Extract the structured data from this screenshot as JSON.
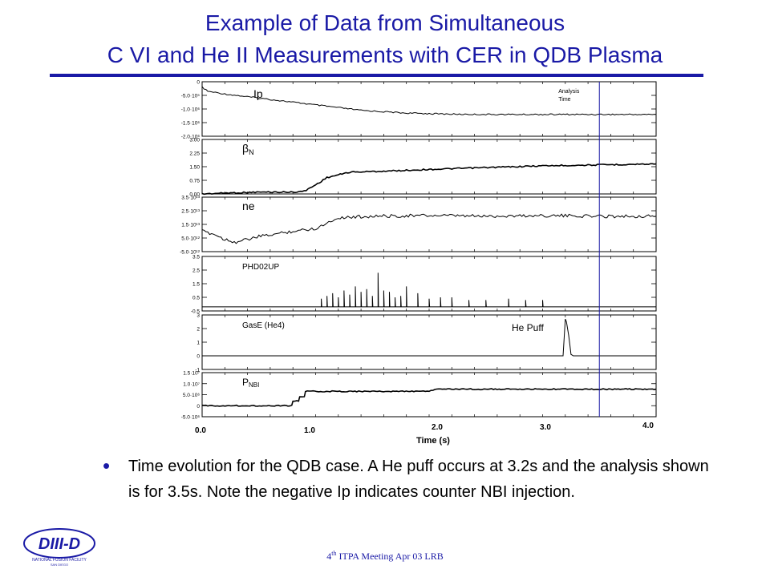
{
  "slide": {
    "title_line1": "Example of Data from Simultaneous",
    "title_line2": "C VI and He  II Measurements with CER in QDB Plasma",
    "bullet": "Time evolution for the QDB case. A He puff occurs at 3.2s and the analysis shown is for 3.5s. Note the negative Ip indicates counter NBI injection.",
    "footer_sup": "th",
    "footer_pre": "4",
    "footer_post": " ITPA Meeting  Apr 03  LRB",
    "logo_text": "DIII-D",
    "logo_sub": "NATIONAL FUSION FACILITY",
    "logo_sub2": "SAN DIEGO"
  },
  "colors": {
    "title": "#1a1aa6",
    "trace": "#000000",
    "analysis_line": "#1a1aa6"
  },
  "chart_data": {
    "type": "line",
    "xlabel": "Time (s)",
    "x_ticks": [
      "0.0",
      "1.0",
      "2.0",
      "3.0",
      "4.0"
    ],
    "xlim": [
      0.0,
      4.0
    ],
    "annotations": {
      "analysis": "Analysis Time",
      "analysis_time": 3.5,
      "he_puff": "He Puff",
      "he_puff_time": 3.2
    },
    "panels": [
      {
        "id": "ip",
        "label": "Ip",
        "ylim": [
          -2000000.0,
          0
        ],
        "ticks": [
          "0",
          "-5.0·10⁵",
          "-1.0·10⁶",
          "-1.5·10⁶",
          "-2.0·10⁶"
        ],
        "tick_values": [
          0,
          -500000.0,
          -1000000.0,
          -1500000.0,
          -2000000.0
        ],
        "x": [
          0.0,
          0.05,
          0.2,
          0.4,
          0.6,
          0.8,
          1.0,
          1.2,
          1.4,
          1.6,
          1.8,
          2.0,
          2.2,
          2.5,
          3.0,
          3.5,
          4.0
        ],
        "y": [
          -200000.0,
          -350000.0,
          -450000.0,
          -550000.0,
          -650000.0,
          -750000.0,
          -850000.0,
          -950000.0,
          -1050000.0,
          -1100000.0,
          -1150000.0,
          -1170000.0,
          -1190000.0,
          -1200000.0,
          -1200000.0,
          -1200000.0,
          -1200000.0
        ]
      },
      {
        "id": "betaN",
        "label": "βN",
        "ylim": [
          0,
          3.0
        ],
        "ticks": [
          "3.00",
          "2.25",
          "1.50",
          "0.75",
          "0.00"
        ],
        "tick_values": [
          3.0,
          2.25,
          1.5,
          0.75,
          0.0
        ],
        "x": [
          0.0,
          0.2,
          0.5,
          0.8,
          0.9,
          1.0,
          1.1,
          1.3,
          1.6,
          2.0,
          2.5,
          3.0,
          3.5,
          4.0
        ],
        "y": [
          0.0,
          0.05,
          0.1,
          0.1,
          0.15,
          0.5,
          0.9,
          1.2,
          1.25,
          1.35,
          1.45,
          1.55,
          1.6,
          1.65
        ]
      },
      {
        "id": "ne",
        "label": "ne",
        "ylim": [
          -5000000000000.0,
          35000000000000.0
        ],
        "ticks": [
          "3.5·10¹³",
          "2.5·10¹³",
          "1.5·10¹³",
          "5.0·10¹²",
          "-5.0·10¹²"
        ],
        "tick_values": [
          35000000000000.0,
          25000000000000.0,
          15000000000000.0,
          5000000000000.0,
          -5000000000000.0
        ],
        "x": [
          0.0,
          0.1,
          0.2,
          0.3,
          0.5,
          0.8,
          1.0,
          1.2,
          1.5,
          2.0,
          2.5,
          3.0,
          3.5,
          4.0
        ],
        "y": [
          10000000000000.0,
          8000000000000.0,
          4000000000000.0,
          2000000000000.0,
          6000000000000.0,
          10000000000000.0,
          12000000000000.0,
          20000000000000.0,
          21000000000000.0,
          21500000000000.0,
          21000000000000.0,
          21500000000000.0,
          21000000000000.0,
          21000000000000.0
        ]
      },
      {
        "id": "phd",
        "label": "PHD02UP",
        "ylim": [
          -0.5,
          3.5
        ],
        "ticks": [
          "3.5",
          "2.5",
          "1.5",
          "0.5",
          "-0.5"
        ],
        "tick_values": [
          3.5,
          2.5,
          1.5,
          0.5,
          -0.5
        ],
        "baseline": -0.2,
        "spikes_x": [
          1.05,
          1.1,
          1.15,
          1.2,
          1.25,
          1.3,
          1.35,
          1.4,
          1.45,
          1.5,
          1.55,
          1.6,
          1.65,
          1.7,
          1.75,
          1.8,
          1.9,
          2.0,
          2.1,
          2.2,
          2.35,
          2.5,
          2.7,
          2.85,
          3.0
        ],
        "spikes_y": [
          0.4,
          0.6,
          0.8,
          0.5,
          1.0,
          0.7,
          1.3,
          0.9,
          1.1,
          0.6,
          2.3,
          1.0,
          0.9,
          0.5,
          0.6,
          1.3,
          0.8,
          0.4,
          0.5,
          0.5,
          0.3,
          0.3,
          0.4,
          0.3,
          0.3
        ]
      },
      {
        "id": "gas",
        "label": "GasE (He4)",
        "ylim": [
          -1,
          3
        ],
        "ticks": [
          "3",
          "2",
          "1",
          "0",
          "-1"
        ],
        "tick_values": [
          3,
          2,
          1,
          0,
          -1
        ],
        "x": [
          0.0,
          3.18,
          3.2,
          3.21,
          3.23,
          3.25,
          3.27,
          4.0
        ],
        "y": [
          0.0,
          0.0,
          2.7,
          2.5,
          1.5,
          0.1,
          0.0,
          0.0
        ]
      },
      {
        "id": "pnbi",
        "label": "PNBI",
        "ylim": [
          -5000000.0,
          15000000.0
        ],
        "ticks": [
          "1.5·10⁷",
          "1.0·10⁷",
          "5.0·10⁶",
          "0",
          "-5.0·10⁶"
        ],
        "tick_values": [
          15000000.0,
          10000000.0,
          5000000.0,
          0,
          -5000000.0
        ],
        "x": [
          0.0,
          0.79,
          0.8,
          0.85,
          0.86,
          0.9,
          0.91,
          2.0,
          2.05,
          4.0
        ],
        "y": [
          0.0,
          0.0,
          2200000.0,
          2200000.0,
          4000000.0,
          4000000.0,
          6500000.0,
          6500000.0,
          7500000.0,
          7500000.0
        ]
      }
    ]
  }
}
